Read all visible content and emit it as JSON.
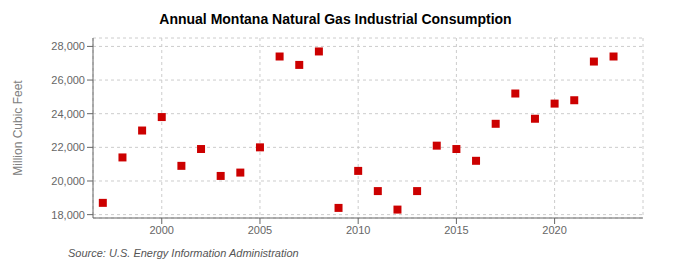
{
  "chart_data": {
    "type": "scatter",
    "title": "Annual Montana Natural Gas Industrial Consumption",
    "ylabel": "Million Cubic Feet",
    "annotations": [
      "Source: U.S. Energy Information Administration"
    ],
    "x": [
      1997,
      1998,
      1999,
      2000,
      2001,
      2002,
      2003,
      2004,
      2005,
      2006,
      2007,
      2008,
      2009,
      2010,
      2011,
      2012,
      2013,
      2014,
      2015,
      2016,
      2017,
      2018,
      2019,
      2020,
      2021,
      2022,
      2023
    ],
    "values": [
      18700,
      21400,
      23000,
      23800,
      20900,
      21900,
      20300,
      20500,
      22000,
      27400,
      26900,
      27700,
      18400,
      20600,
      19400,
      18300,
      19400,
      22100,
      21900,
      21200,
      23400,
      25200,
      23700,
      24600,
      24800,
      27100,
      27400
    ],
    "color": "#cc0000",
    "marker": "square",
    "xlim": [
      1996.5,
      2024.5
    ],
    "ylim": [
      17800,
      28500
    ],
    "xticks": [
      2000,
      2005,
      2010,
      2015,
      2020
    ],
    "yticks": [
      {
        "value": 18000,
        "label": "18,000"
      },
      {
        "value": 20000,
        "label": "20,000"
      },
      {
        "value": 22000,
        "label": "22,000"
      },
      {
        "value": 24000,
        "label": "24,000"
      },
      {
        "value": 26000,
        "label": "26,000"
      },
      {
        "value": 28000,
        "label": "28,000"
      }
    ],
    "grid": true
  }
}
